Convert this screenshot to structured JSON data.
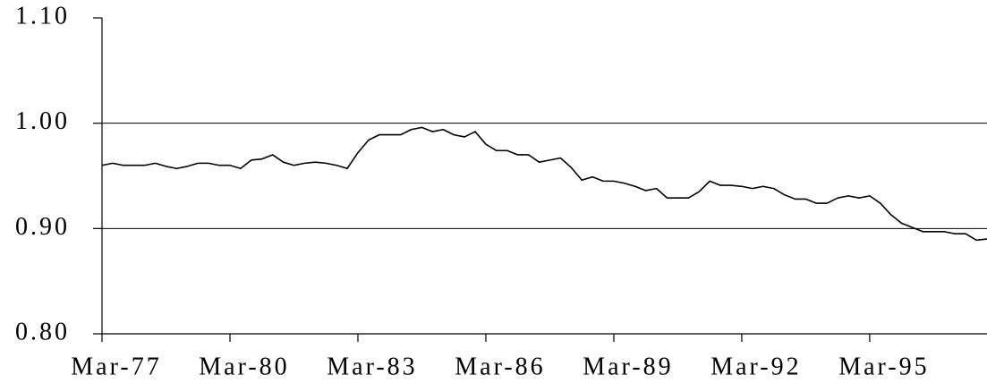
{
  "chart_data": {
    "type": "line",
    "categories": [
      "Mar-77",
      null,
      null,
      null,
      null,
      null,
      null,
      null,
      null,
      null,
      null,
      null,
      "Mar-80",
      null,
      null,
      null,
      null,
      null,
      null,
      null,
      null,
      null,
      null,
      null,
      "Mar-83",
      null,
      null,
      null,
      null,
      null,
      null,
      null,
      null,
      null,
      null,
      null,
      "Mar-86",
      null,
      null,
      null,
      null,
      null,
      null,
      null,
      null,
      null,
      null,
      null,
      "Mar-89",
      null,
      null,
      null,
      null,
      null,
      null,
      null,
      null,
      null,
      null,
      null,
      "Mar-92",
      null,
      null,
      null,
      null,
      null,
      null,
      null,
      null,
      null,
      null,
      null,
      "Mar-95",
      null,
      null,
      null,
      null,
      null,
      null,
      null,
      null,
      null,
      null,
      null
    ],
    "values": [
      0.96,
      0.962,
      0.96,
      0.96,
      0.96,
      0.962,
      0.959,
      0.957,
      0.959,
      0.962,
      0.962,
      0.96,
      0.96,
      0.957,
      0.965,
      0.966,
      0.97,
      0.963,
      0.96,
      0.962,
      0.963,
      0.962,
      0.96,
      0.957,
      0.972,
      0.984,
      0.989,
      0.989,
      0.989,
      0.994,
      0.996,
      0.992,
      0.994,
      0.989,
      0.987,
      0.992,
      0.98,
      0.974,
      0.974,
      0.97,
      0.97,
      0.963,
      0.965,
      0.967,
      0.958,
      0.946,
      0.949,
      0.945,
      0.945,
      0.943,
      0.94,
      0.936,
      0.938,
      0.929,
      0.929,
      0.929,
      0.935,
      0.945,
      0.941,
      0.941,
      0.94,
      0.938,
      0.94,
      0.938,
      0.932,
      0.928,
      0.928,
      0.924,
      0.924,
      0.929,
      0.931,
      0.929,
      0.931,
      0.924,
      0.913,
      0.905,
      0.901,
      0.897,
      0.897,
      0.897,
      0.895,
      0.895,
      0.889,
      0.89
    ],
    "color": "#000000",
    "ylim": [
      0.8,
      1.1
    ],
    "yticks": [
      {
        "value": 0.8,
        "label": "0.80"
      },
      {
        "value": 0.9,
        "label": "0.90"
      },
      {
        "value": 1.0,
        "label": "1.00"
      },
      {
        "value": 1.1,
        "label": "1.10"
      }
    ],
    "grid": true
  }
}
